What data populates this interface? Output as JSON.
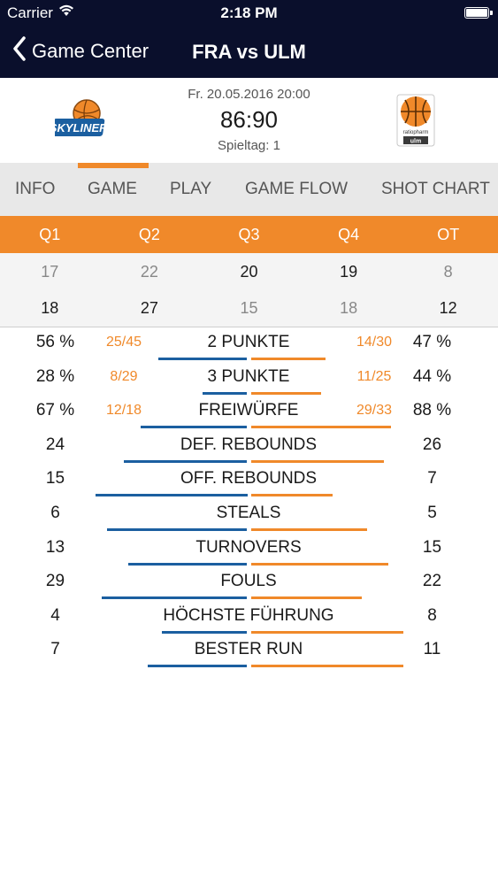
{
  "status_bar": {
    "carrier": "Carrier",
    "time": "2:18 PM"
  },
  "nav": {
    "back_label": "Game Center",
    "title": "FRA vs ULM"
  },
  "game": {
    "date": "Fr. 20.05.2016 20:00",
    "score": "86:90",
    "matchday": "Spieltag: 1",
    "home_logo_text": "SKYLINERS",
    "away_logo_text": "ratiopharm ulm"
  },
  "tabs": [
    "INFO",
    "GAME",
    "PLAY",
    "GAME FLOW",
    "SHOT CHART"
  ],
  "active_tab": "GAME",
  "colors": {
    "navy": "#0a0f2c",
    "orange": "#f0892a",
    "blue": "#1b5fa0"
  },
  "quarters": {
    "headers": [
      "Q1",
      "Q2",
      "Q3",
      "Q4",
      "OT"
    ],
    "home": [
      "17",
      "22",
      "20",
      "19",
      "8"
    ],
    "away": [
      "18",
      "27",
      "15",
      "18",
      "12"
    ]
  },
  "stats": [
    {
      "label": "2 PUNKTE",
      "home": "56 %",
      "away": "47 %",
      "home_frac": "25/45",
      "away_frac": "14/30",
      "home_bar": 0.56,
      "away_bar": 0.47
    },
    {
      "label": "3 PUNKTE",
      "home": "28 %",
      "away": "44 %",
      "home_frac": "8/29",
      "away_frac": "11/25",
      "home_bar": 0.28,
      "away_bar": 0.44
    },
    {
      "label": "FREIWÜRFE",
      "home": "67 %",
      "away": "88 %",
      "home_frac": "12/18",
      "away_frac": "29/33",
      "home_bar": 0.67,
      "away_bar": 0.88
    },
    {
      "label": "DEF. REBOUNDS",
      "home": "24",
      "away": "26",
      "home_frac": "",
      "away_frac": "",
      "home_bar": 24,
      "away_bar": 26
    },
    {
      "label": "OFF. REBOUNDS",
      "home": "15",
      "away": "7",
      "home_frac": "",
      "away_frac": "",
      "home_bar": 15,
      "away_bar": 7
    },
    {
      "label": "STEALS",
      "home": "6",
      "away": "5",
      "home_frac": "",
      "away_frac": "",
      "home_bar": 6,
      "away_bar": 5
    },
    {
      "label": "TURNOVERS",
      "home": "13",
      "away": "15",
      "home_frac": "",
      "away_frac": "",
      "home_bar": 13,
      "away_bar": 15
    },
    {
      "label": "FOULS",
      "home": "29",
      "away": "22",
      "home_frac": "",
      "away_frac": "",
      "home_bar": 29,
      "away_bar": 22
    },
    {
      "label": "HÖCHSTE FÜHRUNG",
      "home": "4",
      "away": "8",
      "home_frac": "",
      "away_frac": "",
      "home_bar": 4,
      "away_bar": 8
    },
    {
      "label": "BESTER RUN",
      "home": "7",
      "away": "11",
      "home_frac": "",
      "away_frac": "",
      "home_bar": 7,
      "away_bar": 11
    }
  ]
}
